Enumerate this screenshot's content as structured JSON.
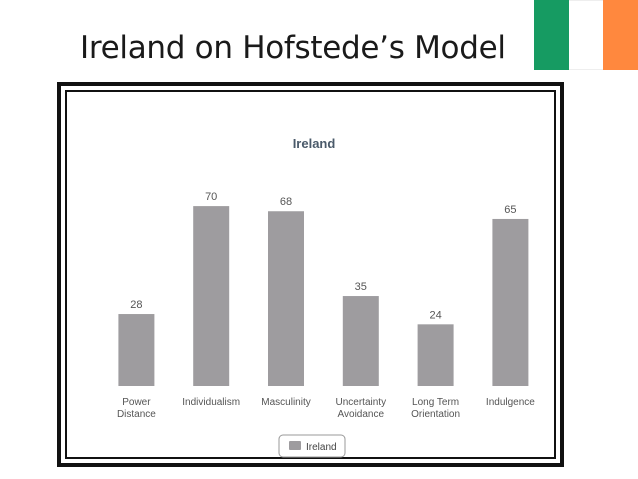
{
  "slide": {
    "title": "Ireland on Hofstede’s Model"
  },
  "flag": {
    "colors": [
      "#169b62",
      "#ffffff",
      "#ff883e"
    ]
  },
  "chart_data": {
    "type": "bar",
    "title": "Ireland",
    "categories": [
      [
        "Power",
        "Distance"
      ],
      [
        "Individualism"
      ],
      [
        "Masculinity"
      ],
      [
        "Uncertainty",
        "Avoidance"
      ],
      [
        "Long Term",
        "Orientation"
      ],
      [
        "Indulgence"
      ]
    ],
    "series": [
      {
        "name": "Ireland",
        "values": [
          28,
          70,
          68,
          35,
          24,
          65
        ],
        "color": "#9e9c9f"
      }
    ],
    "ylim": [
      0,
      100
    ],
    "grid": false,
    "legend_position": "bottom-center"
  }
}
